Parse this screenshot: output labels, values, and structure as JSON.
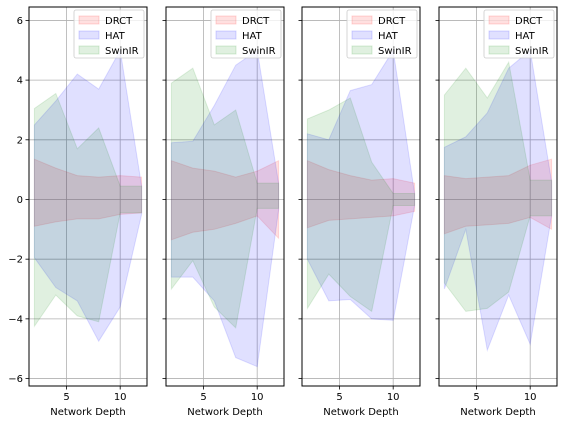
{
  "chart_data": {
    "type": "area",
    "shared": {
      "xlabel": "Network Depth",
      "ylabel": "",
      "xlim": [
        1.5,
        12.5
      ],
      "ylim": [
        -6.25,
        6.45
      ],
      "xticks": [
        5,
        10
      ],
      "yticks": [
        -6,
        -4,
        -2,
        0,
        2,
        4,
        6
      ],
      "grid": true,
      "legend_position": "top-right",
      "series_colors": {
        "DRCT": "#ff0000",
        "HAT": "#0000ff",
        "SwinIR": "#008000"
      }
    },
    "panels": [
      {
        "x": [
          2,
          4,
          6,
          8,
          10,
          12
        ],
        "series": [
          {
            "name": "DRCT",
            "upper": [
              1.35,
              1.05,
              0.8,
              0.75,
              0.8,
              0.75
            ],
            "lower": [
              -0.9,
              -0.75,
              -0.65,
              -0.65,
              -0.5,
              -0.45
            ]
          },
          {
            "name": "HAT",
            "upper": [
              2.5,
              3.3,
              4.2,
              3.7,
              5.0,
              0.45
            ],
            "lower": [
              -1.95,
              -2.95,
              -3.4,
              -4.75,
              -3.6,
              -0.5
            ]
          },
          {
            "name": "SwinIR",
            "upper": [
              3.05,
              3.55,
              1.7,
              2.4,
              0.45,
              0.45
            ],
            "lower": [
              -4.25,
              -3.2,
              -3.9,
              -4.1,
              -0.45,
              -0.45
            ]
          }
        ]
      },
      {
        "x": [
          2,
          4,
          6,
          8,
          10,
          12
        ],
        "series": [
          {
            "name": "DRCT",
            "upper": [
              1.3,
              1.05,
              0.95,
              0.75,
              0.95,
              1.3
            ],
            "lower": [
              -1.35,
              -1.1,
              -1.0,
              -0.8,
              -0.55,
              -1.3
            ]
          },
          {
            "name": "HAT",
            "upper": [
              1.9,
              1.95,
              3.15,
              4.5,
              5.0,
              0.55
            ],
            "lower": [
              -2.6,
              -2.6,
              -3.4,
              -5.3,
              -5.6,
              -0.35
            ]
          },
          {
            "name": "SwinIR",
            "upper": [
              3.9,
              4.4,
              2.5,
              3.0,
              0.55,
              0.55
            ],
            "lower": [
              -3.0,
              -2.05,
              -3.6,
              -4.3,
              -0.3,
              -0.3
            ]
          }
        ]
      },
      {
        "x": [
          2,
          4,
          6,
          8,
          10,
          12
        ],
        "series": [
          {
            "name": "DRCT",
            "upper": [
              1.3,
              1.0,
              0.8,
              0.65,
              0.7,
              0.55
            ],
            "lower": [
              -0.95,
              -0.7,
              -0.65,
              -0.6,
              -0.55,
              -0.4
            ]
          },
          {
            "name": "HAT",
            "upper": [
              2.2,
              2.0,
              3.65,
              3.85,
              5.0,
              0.2
            ],
            "lower": [
              -2.0,
              -3.4,
              -3.35,
              -4.0,
              -4.05,
              -0.2
            ]
          },
          {
            "name": "SwinIR",
            "upper": [
              2.7,
              3.0,
              3.4,
              1.25,
              0.2,
              0.2
            ],
            "lower": [
              -3.65,
              -2.5,
              -3.25,
              -3.75,
              -0.2,
              -0.2
            ]
          }
        ]
      },
      {
        "x": [
          2,
          4,
          6,
          8,
          10,
          12
        ],
        "series": [
          {
            "name": "DRCT",
            "upper": [
              0.8,
              0.7,
              0.75,
              0.8,
              1.15,
              1.35
            ],
            "lower": [
              -1.15,
              -0.9,
              -0.85,
              -0.8,
              -0.6,
              -1.0
            ]
          },
          {
            "name": "HAT",
            "upper": [
              1.75,
              2.1,
              2.9,
              4.4,
              5.0,
              0.6
            ],
            "lower": [
              -3.0,
              -1.0,
              -5.05,
              -3.2,
              -4.85,
              -0.55
            ]
          },
          {
            "name": "SwinIR",
            "upper": [
              3.5,
              4.4,
              3.4,
              4.6,
              0.65,
              0.65
            ],
            "lower": [
              -2.8,
              -3.75,
              -3.65,
              -3.1,
              -0.55,
              -0.55
            ]
          }
        ]
      }
    ]
  }
}
